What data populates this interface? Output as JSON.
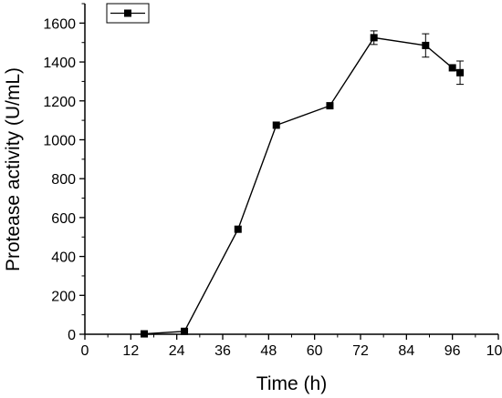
{
  "chart_data": {
    "type": "line",
    "title": "",
    "xlabel": "Time (h)",
    "ylabel": "Protease activity (U/mL)",
    "xlim": [
      0,
      108
    ],
    "ylim": [
      0,
      1700
    ],
    "xticks": [
      0,
      12,
      24,
      36,
      48,
      60,
      72,
      84,
      96,
      108
    ],
    "yticks": [
      0,
      200,
      400,
      600,
      800,
      1000,
      1200,
      1400,
      1600
    ],
    "xtick_labels": [
      "0",
      "12",
      "24",
      "36",
      "48",
      "60",
      "72",
      "84",
      "96",
      "108"
    ],
    "ytick_labels": [
      "0",
      "200",
      "400",
      "600",
      "800",
      "1000",
      "1200",
      "1400",
      "1600"
    ],
    "grid": false,
    "legend": {
      "position": "top-left",
      "entries": [
        ""
      ]
    },
    "series": [
      {
        "x": [
          15.5,
          26,
          40,
          50,
          64,
          75.5,
          89,
          96,
          98
        ],
        "y": [
          2,
          15,
          540,
          1075,
          1175,
          1525,
          1485,
          1370,
          1345
        ],
        "error": [
          0,
          0,
          0,
          0,
          0,
          35,
          60,
          0,
          60
        ],
        "color": "#000000",
        "marker": "square"
      }
    ]
  }
}
